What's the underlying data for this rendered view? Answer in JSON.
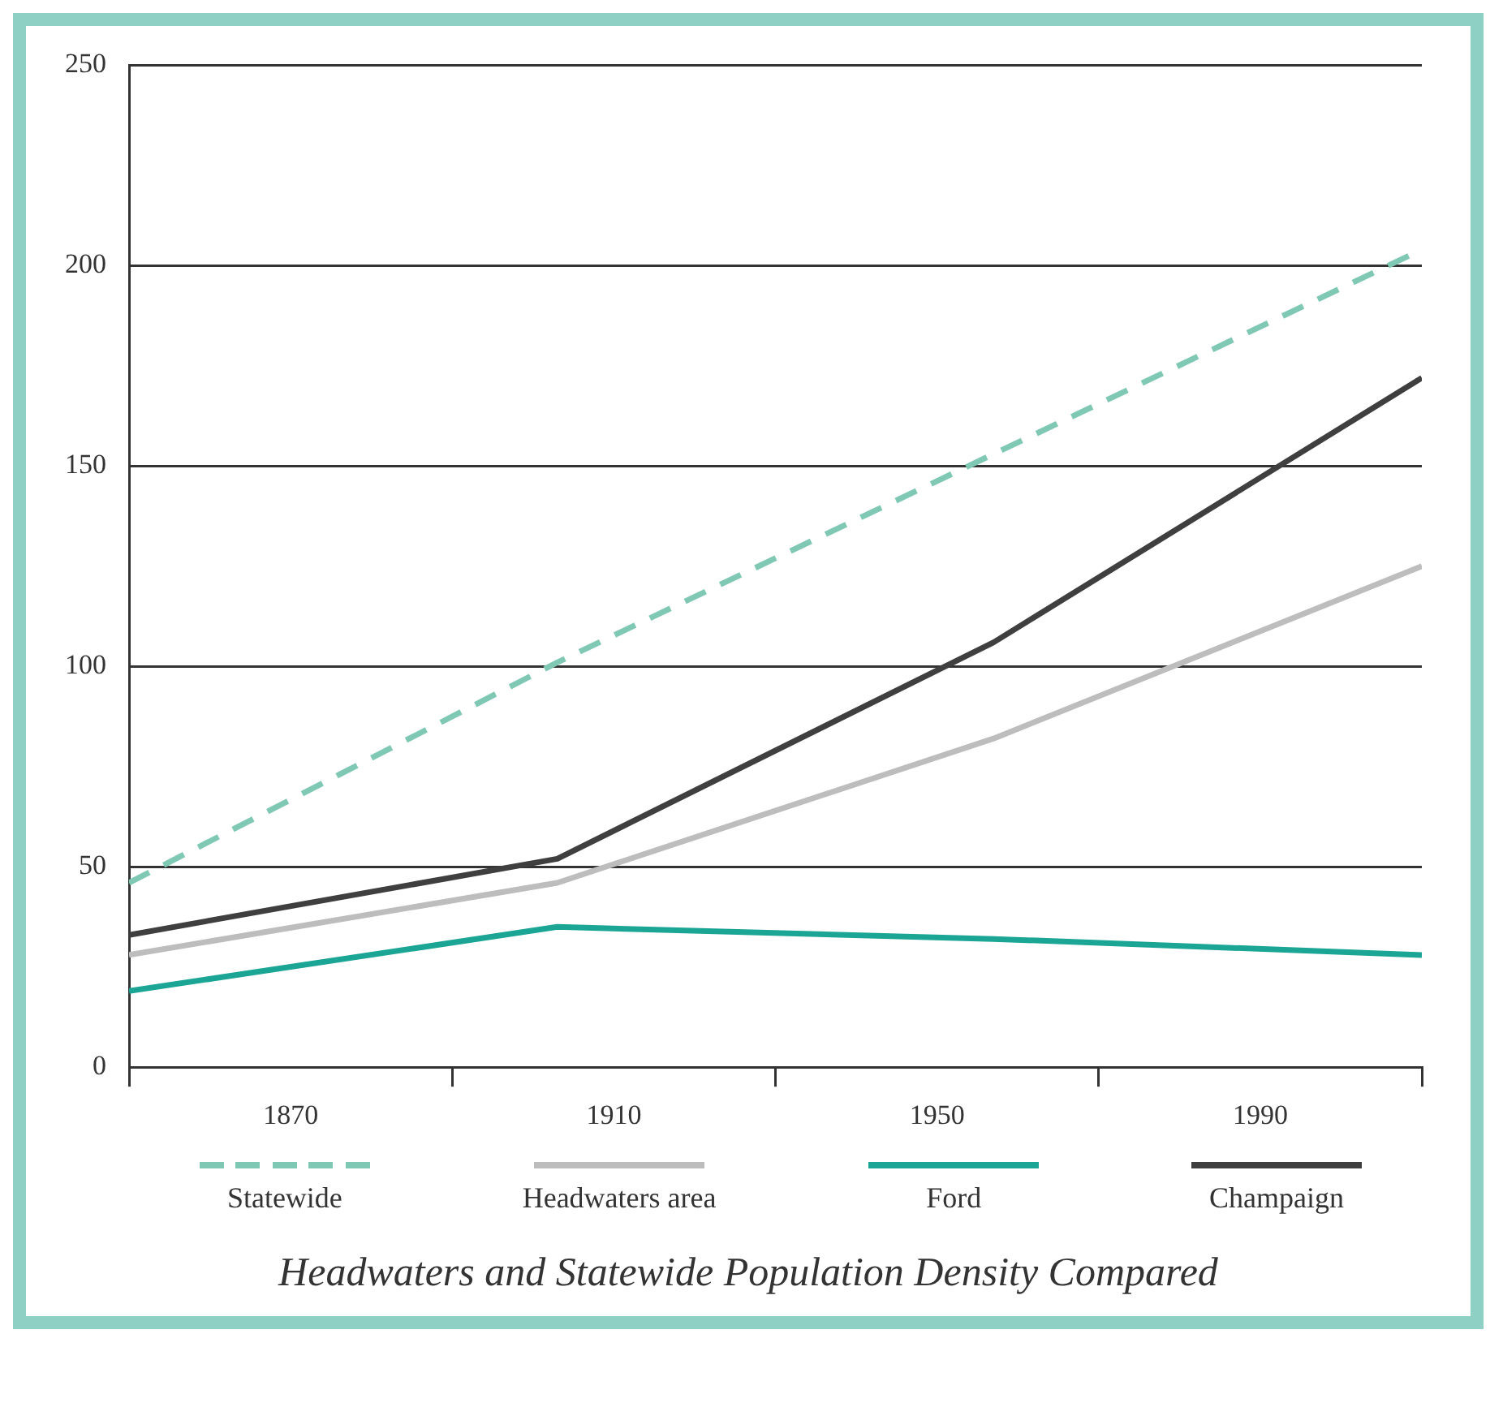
{
  "chart_data": {
    "type": "line",
    "title": "Headwaters and Statewide Population Density Compared",
    "x": [
      1850,
      1903,
      1957,
      2010
    ],
    "series": [
      {
        "name": "Statewide",
        "color": "#7fc8b4",
        "values": [
          46,
          101,
          153,
          204
        ],
        "line_style": "dashed"
      },
      {
        "name": "Headwaters area",
        "color": "#bdbdbd",
        "values": [
          28,
          46,
          82,
          125
        ]
      },
      {
        "name": "Ford",
        "color": "#1aa595",
        "values": [
          19,
          35,
          32,
          28
        ]
      },
      {
        "name": "Champaign",
        "color": "#3f3f3f",
        "values": [
          33,
          52,
          106,
          172
        ]
      }
    ],
    "xlim": [
      1850,
      2010
    ],
    "xticks": [
      {
        "value": 1850,
        "label": null
      },
      1870,
      {
        "value": 1890,
        "label": null
      },
      1910,
      {
        "value": 1930,
        "label": null
      },
      1950,
      {
        "value": 1970,
        "label": null
      },
      1990,
      {
        "value": 2010,
        "label": null
      }
    ],
    "ylim": [
      0,
      250
    ],
    "yticks": [
      0,
      50,
      100,
      150,
      200,
      250
    ],
    "grid": "y",
    "legend": "bottom",
    "marker": "none",
    "line_style": "solid"
  }
}
